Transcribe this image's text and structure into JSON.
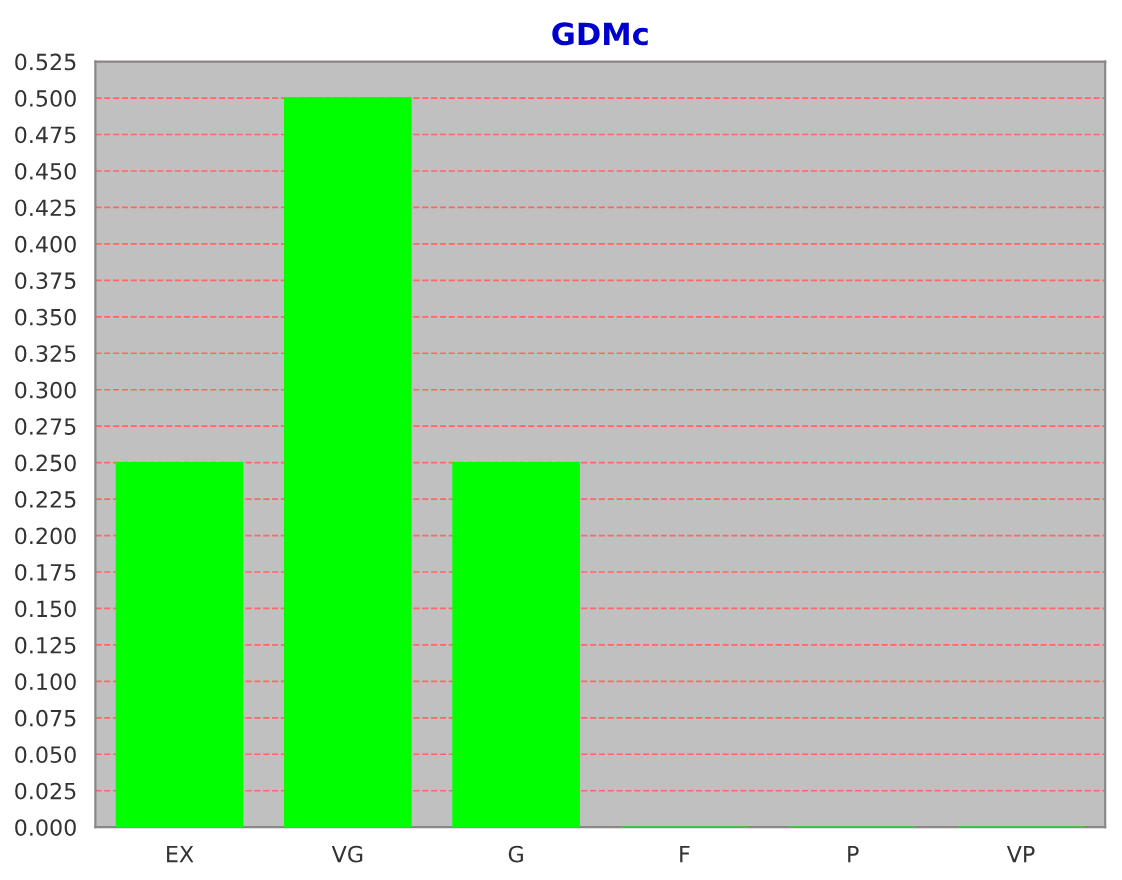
{
  "chart_data": {
    "type": "bar",
    "title": "GDMc",
    "categories": [
      "EX",
      "VG",
      "G",
      "F",
      "P",
      "VP"
    ],
    "values": [
      0.25,
      0.5,
      0.25,
      0,
      0,
      0
    ],
    "color": "#00ff00",
    "ylim": [
      0,
      0.525
    ],
    "yticks": [
      {
        "value": 0,
        "label": "0.000"
      },
      {
        "value": 0.025,
        "label": "0.025"
      },
      {
        "value": 0.05,
        "label": "0.050"
      },
      {
        "value": 0.075,
        "label": "0.075"
      },
      {
        "value": 0.1,
        "label": "0.100"
      },
      {
        "value": 0.125,
        "label": "0.125"
      },
      {
        "value": 0.15,
        "label": "0.150"
      },
      {
        "value": 0.175,
        "label": "0.175"
      },
      {
        "value": 0.2,
        "label": "0.200"
      },
      {
        "value": 0.225,
        "label": "0.225"
      },
      {
        "value": 0.25,
        "label": "0.250"
      },
      {
        "value": 0.275,
        "label": "0.275"
      },
      {
        "value": 0.3,
        "label": "0.300"
      },
      {
        "value": 0.325,
        "label": "0.325"
      },
      {
        "value": 0.35,
        "label": "0.350"
      },
      {
        "value": 0.375,
        "label": "0.375"
      },
      {
        "value": 0.4,
        "label": "0.400"
      },
      {
        "value": 0.425,
        "label": "0.425"
      },
      {
        "value": 0.45,
        "label": "0.450"
      },
      {
        "value": 0.475,
        "label": "0.475"
      },
      {
        "value": 0.5,
        "label": "0.500"
      },
      {
        "value": 0.525,
        "label": "0.525"
      }
    ],
    "grid": "y"
  }
}
